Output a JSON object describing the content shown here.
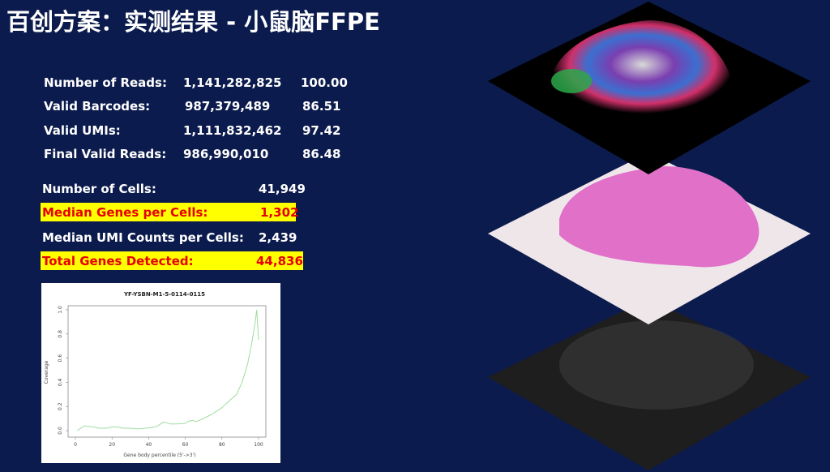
{
  "title": "百创方案：实测结果 - 小鼠脑FFPE",
  "reads_stats": [
    {
      "label": "Number of Reads:",
      "value": "1,141,282,825",
      "percent": "100.00"
    },
    {
      "label": "Valid Barcodes:",
      "value": "987,379,489",
      "percent": "86.51"
    },
    {
      "label": "Valid UMIs:",
      "value": "1,111,832,462",
      "percent": "97.42"
    },
    {
      "label": "Final Valid Reads:",
      "value": "986,990,010",
      "percent": "86.48"
    }
  ],
  "cell_stats": [
    {
      "label": "Number of Cells:",
      "value": "41,949",
      "highlight": false
    },
    {
      "label": "Median Genes per Cells:",
      "value": "1,302",
      "highlight": true
    },
    {
      "label": "Median UMI Counts per Cells:",
      "value": "2,439",
      "highlight": false
    },
    {
      "label": "Total Genes Detected:",
      "value": "44,836",
      "highlight": true
    }
  ],
  "colors": {
    "background": "#0c1b4d",
    "highlight": "#ffff00",
    "highlight_text": "#e60000",
    "curve": "#9fdc9f"
  },
  "images": [
    "spatial-cluster-map",
    "he-stained-section",
    "fluorescence-section"
  ],
  "chart_data": {
    "type": "line",
    "title": "YF-YSBN-M1-5-0114-0115",
    "xlabel": "Gene body percentile (5'->3')",
    "ylabel": "Coverage",
    "xlim": [
      0,
      100
    ],
    "ylim": [
      0,
      1.0
    ],
    "xticks": [
      "0",
      "20",
      "40",
      "60",
      "80",
      "100"
    ],
    "yticks": [
      "0.0",
      "0.2",
      "0.4",
      "0.6",
      "0.8",
      "1.0"
    ],
    "grid": false,
    "x": [
      1,
      3,
      5,
      7,
      10,
      13,
      17,
      20,
      23,
      26,
      30,
      33,
      35,
      38,
      42,
      45,
      48,
      50,
      52,
      55,
      60,
      62,
      64,
      66,
      70,
      75,
      80,
      85,
      88,
      91,
      94,
      96,
      98,
      99,
      100
    ],
    "y": [
      0.0,
      0.02,
      0.04,
      0.035,
      0.03,
      0.02,
      0.02,
      0.03,
      0.03,
      0.02,
      0.02,
      0.015,
      0.015,
      0.02,
      0.025,
      0.04,
      0.07,
      0.065,
      0.055,
      0.055,
      0.06,
      0.08,
      0.085,
      0.075,
      0.1,
      0.14,
      0.19,
      0.26,
      0.3,
      0.4,
      0.55,
      0.7,
      0.88,
      1.0,
      0.75
    ]
  }
}
